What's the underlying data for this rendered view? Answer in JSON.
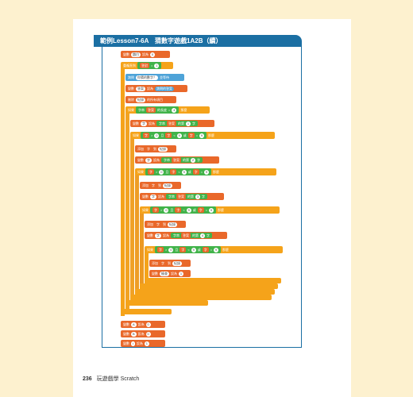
{
  "title": "範例Lesson7-6A　猜數字遊戲1A2B（續）",
  "footer": {
    "page_number": "236",
    "book_title": "玩遊戲學 Scratch"
  },
  "colors": {
    "title_bar": "#1b6fa3",
    "block_orange": "#f5a31a",
    "block_dark_orange": "#e9682a",
    "block_blue": "#4ea3d8",
    "block_green": "#41b34a",
    "margin": "#fdf1cf"
  },
  "blocks": {
    "b1": {
      "a": "變數",
      "b": "題目",
      "c": "設為",
      "d": "0"
    },
    "b2": {
      "a": "重複直到",
      "b": "答對",
      "c": "=",
      "d": "1"
    },
    "b3": {
      "a": "詢問",
      "b": "你猜的數字？",
      "c": "並等待"
    },
    "b4": {
      "a": "變數",
      "b": "答案",
      "c": "設為",
      "d": "詢問的答案"
    },
    "b5": {
      "a": "刪除",
      "b": "紀錄",
      "c": "的所有項目"
    },
    "b6": {
      "a": "如果",
      "b": "字串",
      "c": "答案",
      "d": "的長度",
      "e": "=",
      "f": "4",
      "g": "那麼"
    },
    "b7": {
      "a": "變數",
      "b": "字",
      "c": "設為",
      "d": "字串",
      "e": "答案",
      "f": "的第",
      "g": "1",
      "h": "字"
    },
    "b8": {
      "a": "如果",
      "b": "字",
      "c": ">",
      "d": "0",
      "e": "且",
      "f": "字",
      "g": "<",
      "h": "9",
      "i": "或",
      "j": "字",
      "k": "=",
      "l": "9",
      "m": "那麼"
    },
    "b9": {
      "a": "添加",
      "b": "字",
      "c": "到",
      "d": "紀錄"
    },
    "b10": {
      "a": "變數",
      "b": "字",
      "c": "設為",
      "d": "字串",
      "e": "答案",
      "f": "的第",
      "g": "2",
      "h": "字"
    },
    "b11": {
      "a": "如果",
      "b": "字",
      "c": ">",
      "d": "0",
      "e": "且",
      "f": "字",
      "g": "<",
      "h": "9",
      "i": "或",
      "j": "字",
      "k": "=",
      "l": "9",
      "m": "那麼"
    },
    "b12": {
      "a": "添加",
      "b": "字",
      "c": "到",
      "d": "紀錄"
    },
    "b13": {
      "a": "變數",
      "b": "字",
      "c": "設為",
      "d": "字串",
      "e": "答案",
      "f": "的第",
      "g": "3",
      "h": "字"
    },
    "b14": {
      "a": "如果",
      "b": "字",
      "c": ">",
      "d": "0",
      "e": "且",
      "f": "字",
      "g": "<",
      "h": "9",
      "i": "或",
      "j": "字",
      "k": "=",
      "l": "9",
      "m": "那麼"
    },
    "b15": {
      "a": "添加",
      "b": "字",
      "c": "到",
      "d": "紀錄"
    },
    "b16": {
      "a": "變數",
      "b": "字",
      "c": "設為",
      "d": "字串",
      "e": "答案",
      "f": "的第",
      "g": "4",
      "h": "字"
    },
    "b17": {
      "a": "如果",
      "b": "字",
      "c": ">",
      "d": "0",
      "e": "且",
      "f": "字",
      "g": "<",
      "h": "9",
      "i": "或",
      "j": "字",
      "k": "=",
      "l": "9",
      "m": "那麼"
    },
    "b18": {
      "a": "添加",
      "b": "字",
      "c": "到",
      "d": "紀錄"
    },
    "b19": {
      "a": "變數",
      "b": "檢查",
      "c": "設為",
      "d": "1"
    },
    "b20": {
      "a": "變數",
      "b": "A",
      "c": "設為",
      "d": "0"
    },
    "b21": {
      "a": "變數",
      "b": "B",
      "c": "設為",
      "d": "0"
    },
    "b22": {
      "a": "變數",
      "b": "i",
      "c": "設為",
      "d": "1"
    }
  }
}
